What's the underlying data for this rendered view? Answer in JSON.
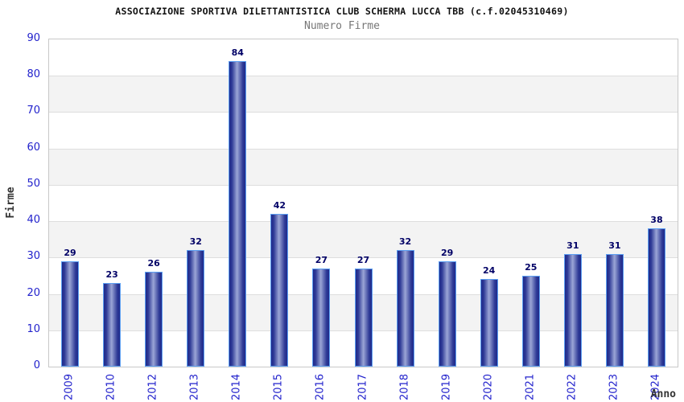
{
  "title": "ASSOCIAZIONE SPORTIVA DILETTANTISTICA CLUB SCHERMA LUCCA TBB (c.f.02045310469)",
  "subtitle": "Numero Firme",
  "chart_data": {
    "type": "bar",
    "categories": [
      "2009",
      "2010",
      "2012",
      "2013",
      "2014",
      "2015",
      "2016",
      "2017",
      "2018",
      "2019",
      "2020",
      "2021",
      "2022",
      "2023",
      "2024"
    ],
    "values": [
      29,
      23,
      26,
      32,
      84,
      42,
      27,
      27,
      32,
      29,
      24,
      25,
      31,
      31,
      38
    ],
    "title": "ASSOCIAZIONE SPORTIVA DILETTANTISTICA CLUB SCHERMA LUCCA TBB (c.f.02045310469)",
    "subtitle": "Numero Firme",
    "xlabel": "Anno",
    "ylabel": "Firme",
    "ylim": [
      0,
      90
    ],
    "ytick_step": 10,
    "yticks": [
      0,
      10,
      20,
      30,
      40,
      50,
      60,
      70,
      80,
      90
    ],
    "grid": "horizontal-bands",
    "legend": "none",
    "bar_value_labels": true
  },
  "colors": {
    "tick_label": "#2222cc",
    "value_label": "#000066",
    "bar_edge_dark": "#1f2a8a",
    "bar_mid": "#2e3a96",
    "bar_center_light": "#9ba5d6",
    "bar_border": "#5c9ff2",
    "band_gray": "#f3f3f3",
    "grid_line": "#dedede",
    "plot_border": "#c8c8c8",
    "title_color": "#111111",
    "subtitle_color": "#777777",
    "axis_title_color": "#333333",
    "background": "#ffffff"
  }
}
